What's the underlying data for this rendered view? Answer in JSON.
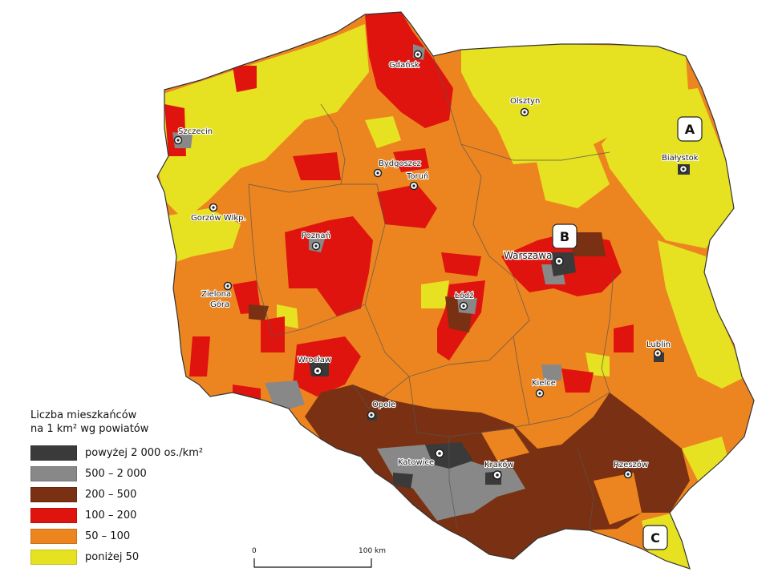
{
  "legend": {
    "title_line1": "Liczba mieszkańców",
    "title_line2": "na 1 km² wg powiatów",
    "classes": [
      {
        "label": "powyżej 2 000 os./km²",
        "color": "#3a3a3a"
      },
      {
        "label": "500 – 2 000",
        "color": "#888888"
      },
      {
        "label": "200 – 500",
        "color": "#7a3012"
      },
      {
        "label": "100 – 200",
        "color": "#e0140e"
      },
      {
        "label": "50 – 100",
        "color": "#ec8520"
      },
      {
        "label": "poniżej 50",
        "color": "#e6e221"
      }
    ]
  },
  "cities": {
    "gdansk": "Gdańsk",
    "szczecin": "Szczecin",
    "olsztyn": "Olsztyn",
    "bydgoszcz": "Bydgoszcz",
    "torun": "Toruń",
    "bialystok": "Białystok",
    "gorzow": "Gorzów Wlkp.",
    "poznan": "Poznań",
    "warszawa": "Warszawa",
    "zielona_line1": "Zielona",
    "zielona_line2": "Góra",
    "lodz": "Łódź",
    "wroclaw": "Wrocław",
    "lublin": "Lublin",
    "opole": "Opole",
    "kielce": "Kielce",
    "katowice": "Katowice",
    "krakow": "Kraków",
    "rzeszow": "Rzeszów"
  },
  "markers": {
    "a": "A",
    "b": "B",
    "c": "C"
  },
  "scale": {
    "start": "0",
    "end": "100 km"
  }
}
